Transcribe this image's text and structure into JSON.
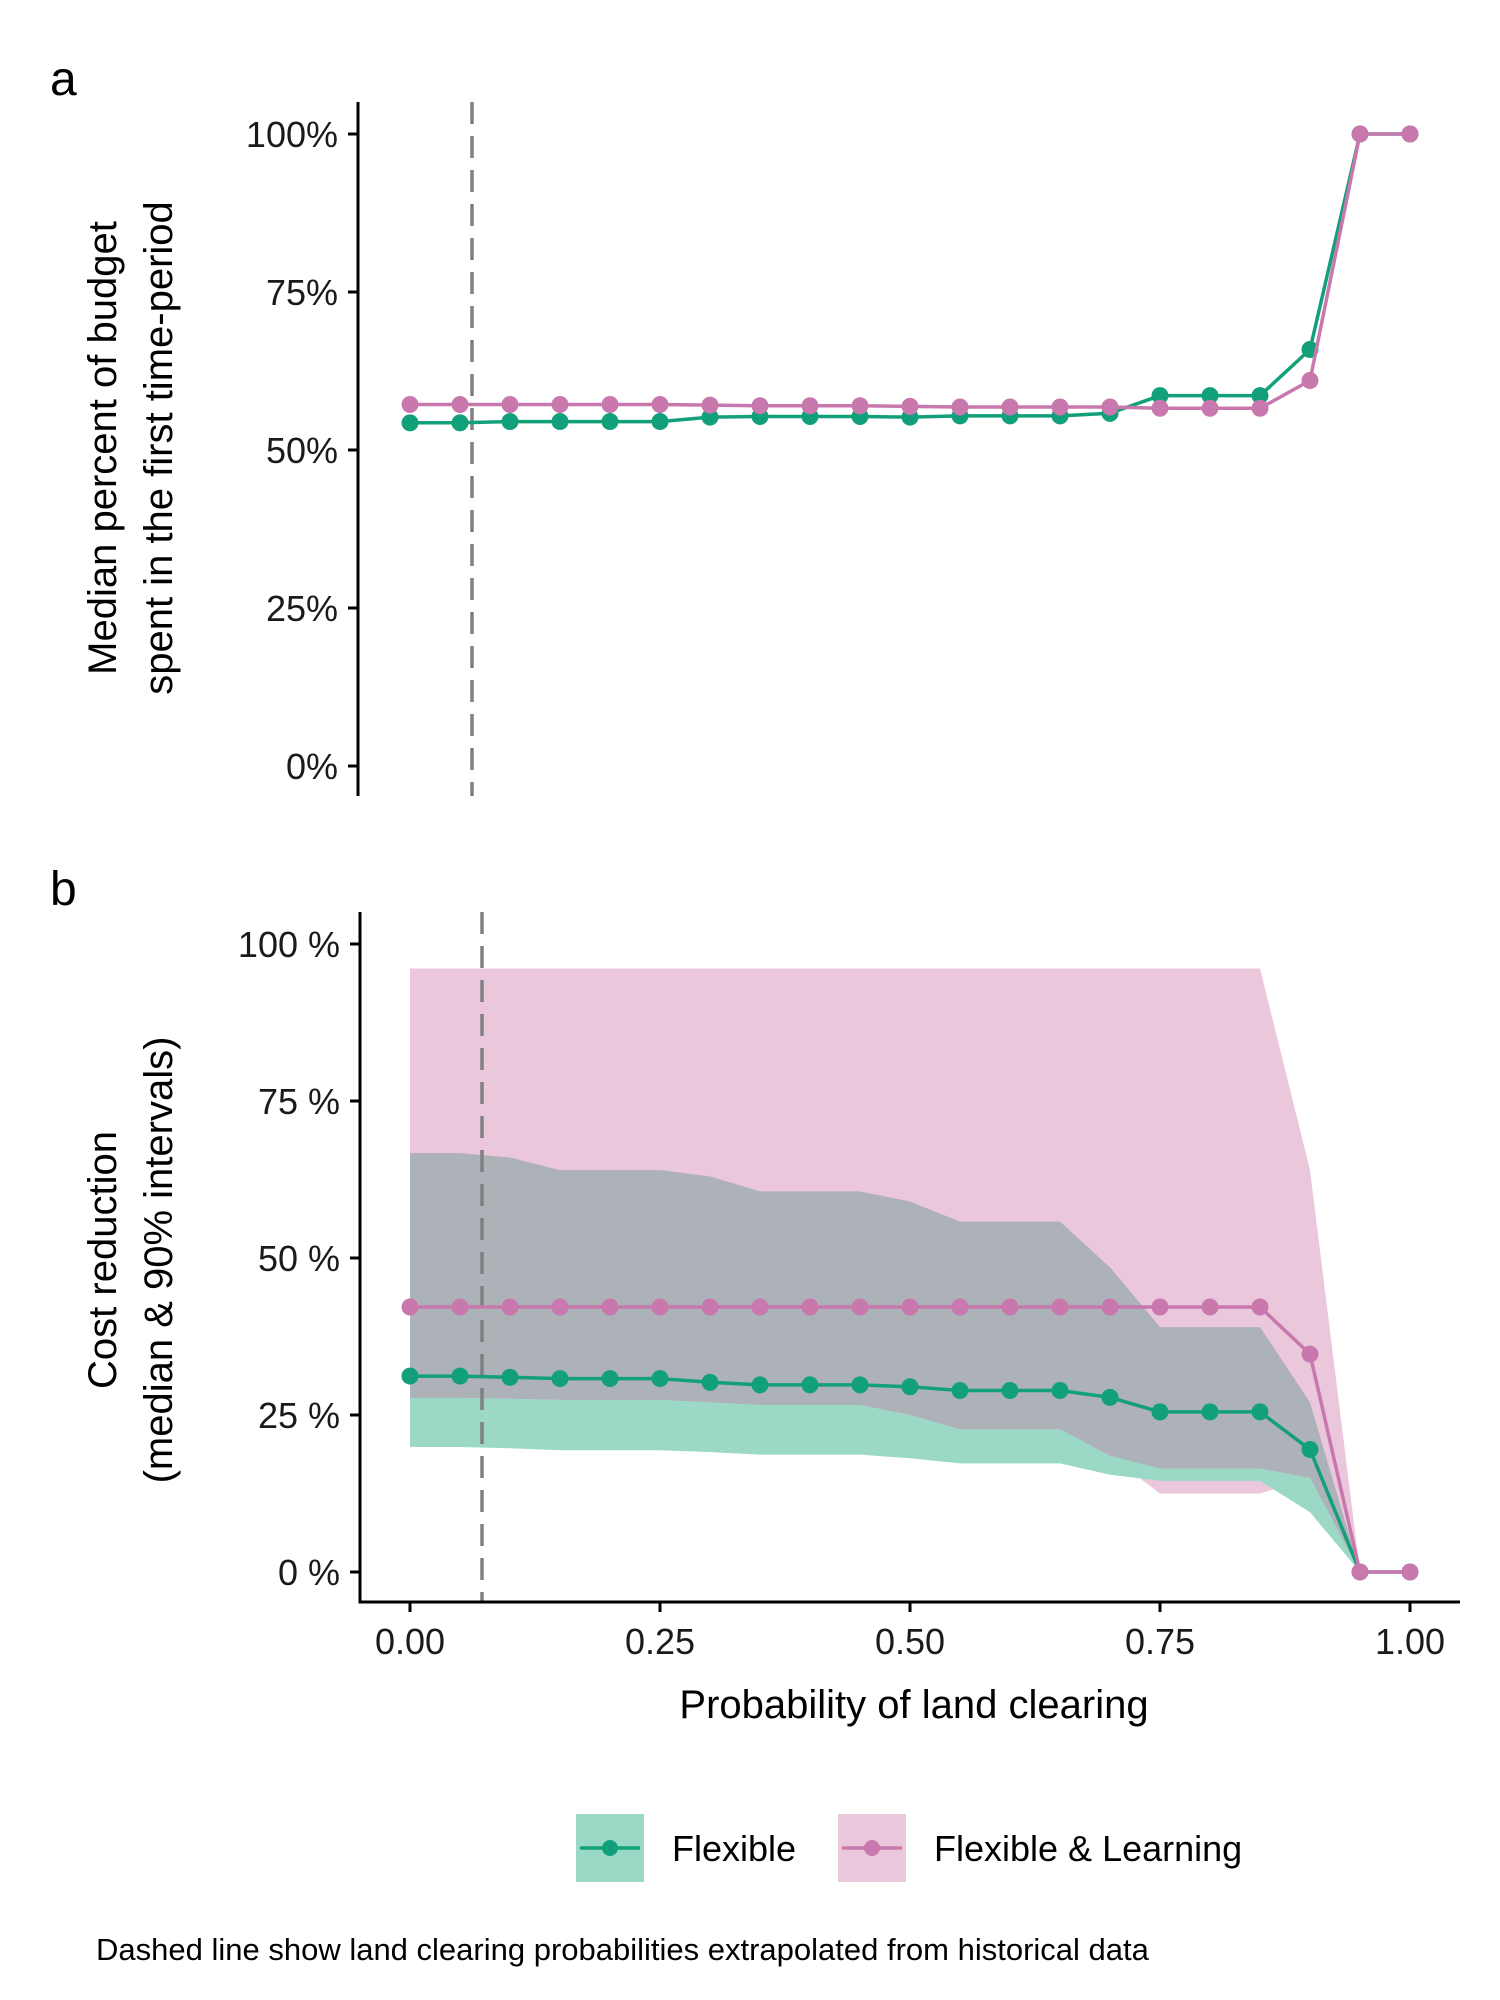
{
  "colors": {
    "flexible": "#12a07a",
    "flexible_learning": "#c878ac",
    "flexible_band": "#9bd9c6",
    "learning_band": "#ebc7db",
    "overlap_band": "#adb1b8",
    "reference_line": "#808080",
    "axis": "#000000"
  },
  "legend": {
    "items": [
      {
        "key": "flexible",
        "label": "Flexible"
      },
      {
        "key": "flexible_learning",
        "label": "Flexible & Learning"
      }
    ]
  },
  "caption": "Dashed line show land clearing probabilities extrapolated from historical data",
  "chart_data": [
    {
      "panel": "a",
      "type": "line",
      "title": "",
      "xlabel": "",
      "ylabel_lines": [
        "Median percent of budget",
        "spent in the first time-period"
      ],
      "xlim": [
        0,
        1
      ],
      "ylim": [
        0,
        100
      ],
      "y_ticks": [
        {
          "value": 0,
          "label": "0%"
        },
        {
          "value": 25,
          "label": "25%"
        },
        {
          "value": 50,
          "label": "50%"
        },
        {
          "value": 75,
          "label": "75%"
        },
        {
          "value": 100,
          "label": "100%"
        }
      ],
      "reference_x": 0.062,
      "grid": false,
      "x": [
        0,
        0.05,
        0.1,
        0.15,
        0.2,
        0.25,
        0.3,
        0.35,
        0.4,
        0.45,
        0.5,
        0.55,
        0.6,
        0.65,
        0.7,
        0.75,
        0.8,
        0.85,
        0.9,
        0.95,
        1.0
      ],
      "series": [
        {
          "key": "flexible",
          "name": "Flexible",
          "values": [
            54.3,
            54.3,
            54.5,
            54.5,
            54.5,
            54.5,
            55.2,
            55.3,
            55.3,
            55.3,
            55.2,
            55.4,
            55.4,
            55.4,
            55.8,
            58.6,
            58.6,
            58.6,
            65.9,
            100,
            100
          ]
        },
        {
          "key": "flexible_learning",
          "name": "Flexible & Learning",
          "values": [
            57.2,
            57.2,
            57.2,
            57.2,
            57.2,
            57.2,
            57.1,
            57.0,
            57.0,
            57.0,
            56.9,
            56.8,
            56.8,
            56.8,
            56.8,
            56.6,
            56.6,
            56.6,
            61.0,
            100,
            100
          ]
        }
      ]
    },
    {
      "panel": "b",
      "type": "line",
      "title": "",
      "xlabel": "Probability of land clearing",
      "ylabel_lines": [
        "Cost reduction",
        "(median & 90% intervals)"
      ],
      "xlim": [
        0,
        1
      ],
      "ylim": [
        0,
        100
      ],
      "x_ticks": [
        {
          "value": 0,
          "label": "0.00"
        },
        {
          "value": 0.25,
          "label": "0.25"
        },
        {
          "value": 0.5,
          "label": "0.50"
        },
        {
          "value": 0.75,
          "label": "0.75"
        },
        {
          "value": 1.0,
          "label": "1.00"
        }
      ],
      "y_ticks": [
        {
          "value": 0,
          "label": "0 %"
        },
        {
          "value": 25,
          "label": "25 %"
        },
        {
          "value": 50,
          "label": "50 %"
        },
        {
          "value": 75,
          "label": "75 %"
        },
        {
          "value": 100,
          "label": "100 %"
        }
      ],
      "reference_x": 0.072,
      "grid": false,
      "x": [
        0,
        0.05,
        0.1,
        0.15,
        0.2,
        0.25,
        0.3,
        0.35,
        0.4,
        0.45,
        0.5,
        0.55,
        0.6,
        0.65,
        0.7,
        0.75,
        0.8,
        0.85,
        0.9,
        0.95,
        1.0
      ],
      "series": [
        {
          "key": "flexible",
          "name": "Flexible",
          "values": [
            31.2,
            31.2,
            31.0,
            30.8,
            30.8,
            30.8,
            30.2,
            29.8,
            29.8,
            29.8,
            29.5,
            28.9,
            28.9,
            28.9,
            27.8,
            25.5,
            25.5,
            25.5,
            19.5,
            0,
            0
          ],
          "lower": [
            19.9,
            19.9,
            19.7,
            19.4,
            19.4,
            19.4,
            19.1,
            18.7,
            18.7,
            18.7,
            18.1,
            17.3,
            17.3,
            17.3,
            15.5,
            14.5,
            14.5,
            14.5,
            9.5,
            0,
            0
          ],
          "upper": [
            27.7,
            27.7,
            27.6,
            27.4,
            27.4,
            27.4,
            27.0,
            26.6,
            26.6,
            26.6,
            25.0,
            22.7,
            22.7,
            22.7,
            18.5,
            16.5,
            16.5,
            16.5,
            15.0,
            0,
            0
          ]
        },
        {
          "key": "flexible_learning",
          "name": "Flexible & Learning",
          "values": [
            42.2,
            42.2,
            42.2,
            42.2,
            42.2,
            42.2,
            42.2,
            42.2,
            42.2,
            42.2,
            42.2,
            42.2,
            42.2,
            42.2,
            42.2,
            42.2,
            42.2,
            42.2,
            34.7,
            0,
            0
          ],
          "lower": [
            27.7,
            27.7,
            27.6,
            27.4,
            27.4,
            27.4,
            27.0,
            26.6,
            26.6,
            26.6,
            25.0,
            22.7,
            22.7,
            22.7,
            18.5,
            12.5,
            12.5,
            12.5,
            15.0,
            0,
            0
          ],
          "upper": [
            96.1,
            96.1,
            96.1,
            96.1,
            96.1,
            96.1,
            96.1,
            96.1,
            96.1,
            96.1,
            96.1,
            96.1,
            96.1,
            96.1,
            96.1,
            96.1,
            96.1,
            96.1,
            64.0,
            0,
            0
          ]
        }
      ],
      "overlap_band": {
        "lower": [
          27.7,
          27.7,
          27.6,
          27.4,
          27.4,
          27.4,
          27.0,
          26.6,
          26.6,
          26.6,
          25.0,
          22.7,
          22.7,
          22.7,
          18.5,
          16.5,
          16.5,
          16.5,
          15.0,
          0,
          0
        ],
        "upper": [
          66.7,
          66.7,
          66.0,
          64.0,
          64.0,
          64.0,
          63.0,
          60.6,
          60.6,
          60.6,
          59.0,
          55.8,
          55.8,
          55.8,
          48.5,
          39.0,
          39.0,
          39.0,
          27.0,
          0,
          0
        ]
      }
    }
  ]
}
